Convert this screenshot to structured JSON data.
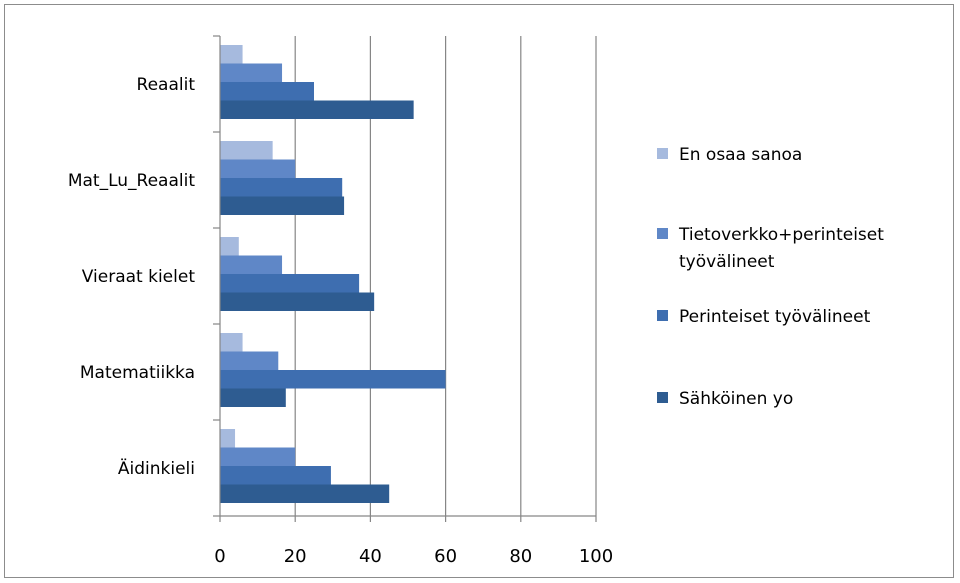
{
  "chart_data": {
    "type": "bar",
    "orientation": "horizontal",
    "categories": [
      "Äidinkieli",
      "Matematiikka",
      "Vieraat kielet",
      "Mat_Lu_Reaalit",
      "Reaalit"
    ],
    "series": [
      {
        "name": "Sähköinen yo",
        "color": "#2e5c91",
        "values": [
          45,
          17.5,
          41,
          33,
          51.5
        ]
      },
      {
        "name": "Perinteiset työvälineet",
        "color": "#3e6eb0",
        "values": [
          29.5,
          60,
          37,
          32.5,
          25
        ]
      },
      {
        "name": "Tietoverkko+perinteiset työvälineet",
        "color": "#5f87c7",
        "values": [
          20,
          15.5,
          16.5,
          20,
          16.5
        ]
      },
      {
        "name": "En osaa sanoa",
        "color": "#a6bade",
        "values": [
          4,
          6,
          5,
          14,
          6
        ]
      }
    ],
    "legend_order": [
      "En osaa sanoa",
      "Tietoverkko+perinteiset työvälineet",
      "Perinteiset työvälineet",
      "Sähköinen yo"
    ],
    "legend_lines": [
      [
        "En osaa sanoa"
      ],
      [
        "Tietoverkko+perinteiset",
        "työvälineet"
      ],
      [
        "Perinteiset työvälineet"
      ],
      [
        "Sähköinen yo"
      ]
    ],
    "xlim": [
      0,
      100
    ],
    "xticks": [
      0,
      20,
      40,
      60,
      80,
      100
    ],
    "grid": true,
    "legend_position": "right",
    "title": "",
    "xlabel": "",
    "ylabel": ""
  }
}
